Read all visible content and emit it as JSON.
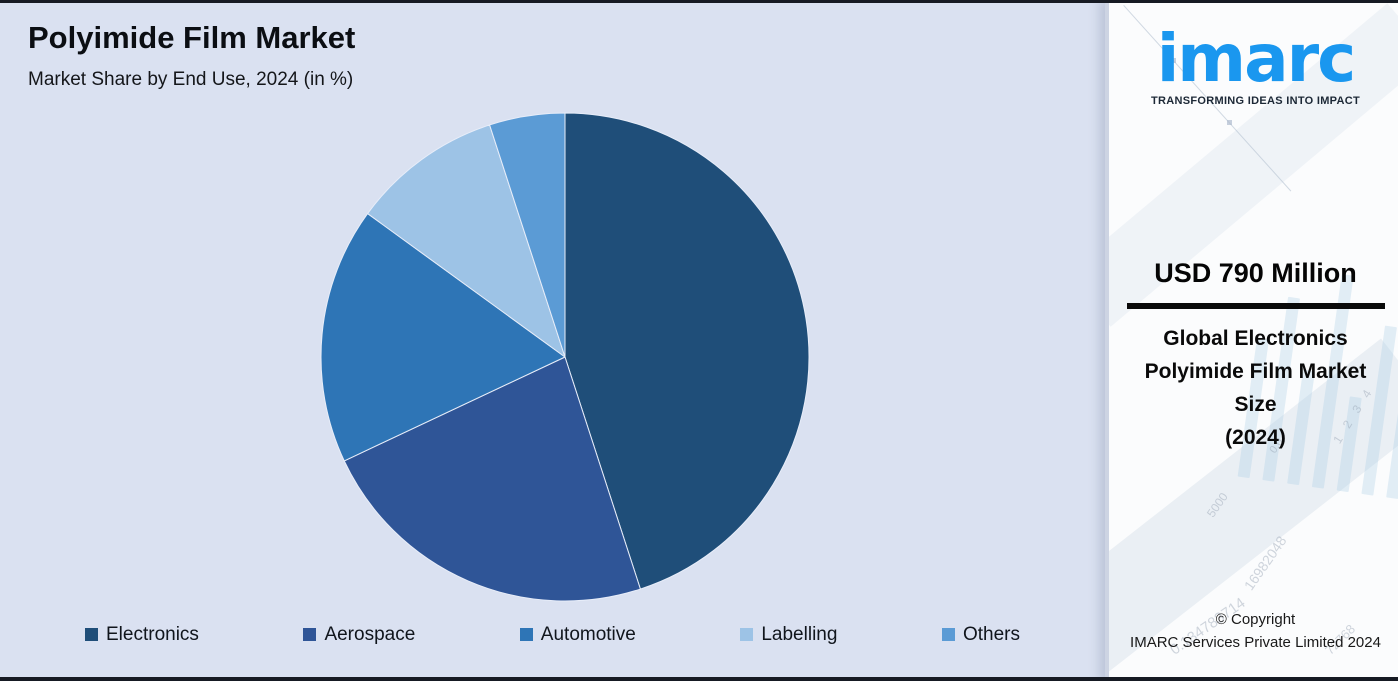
{
  "header": {
    "title": "Polyimide Film Market",
    "subtitle": "Market Share by End Use, 2024 (in %)"
  },
  "chart_data": {
    "type": "pie",
    "title": "Polyimide Film Market",
    "subtitle": "Market Share by End Use, 2024 (in %)",
    "categories": [
      "Electronics",
      "Aerospace",
      "Automotive",
      "Labelling",
      "Others"
    ],
    "values": [
      45,
      23,
      17,
      10,
      5
    ],
    "colors": [
      "#1F4E79",
      "#2F5597",
      "#2E75B6",
      "#9DC3E6",
      "#5B9BD5"
    ],
    "start_angle_deg": 0,
    "direction": "clockwise",
    "legend_position": "bottom",
    "data_labels_shown": false
  },
  "panel": {
    "logo": {
      "text": "imarc",
      "tagline": "TRANSFORMING IDEAS INTO IMPACT",
      "brand_color": "#1A97EF"
    },
    "metric": {
      "value": "USD 790 Million",
      "label_lines": [
        "Global Electronics",
        "Polyimide Film Market",
        "Size",
        "(2024)"
      ]
    },
    "copyright": {
      "line1": "© Copyright",
      "line2": "IMARC Services Private Limited 2024"
    },
    "watermarks": [
      "16982048",
      "0.134783714",
      "72768",
      "1 2 3 4",
      "5000",
      "0.0"
    ]
  },
  "colors": {
    "background": "#DAE1F1",
    "panel_background": "#FBFCFD",
    "frame": "#161A23"
  }
}
